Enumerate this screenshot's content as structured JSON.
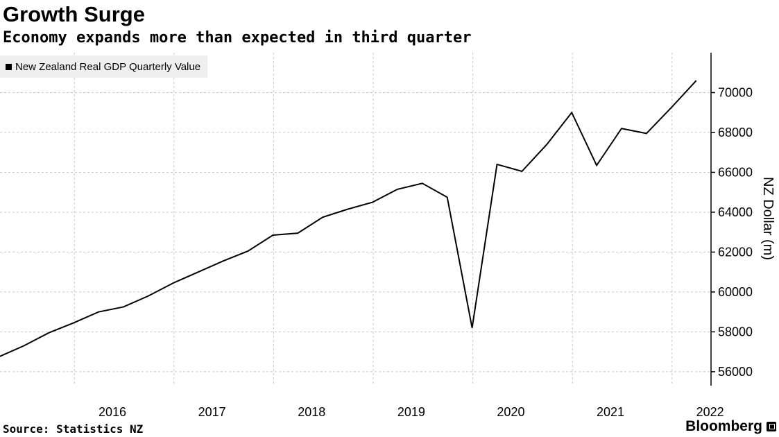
{
  "header": {
    "title": "Growth Surge",
    "subtitle": "Economy expands more than expected in third quarter"
  },
  "legend": {
    "label": "New Zealand Real GDP Quarterly Value"
  },
  "footer": {
    "source": "Source: Statistics NZ",
    "brand": "Bloomberg"
  },
  "colors": {
    "line": "#000000",
    "grid": "#c8c8c8",
    "legend_bg": "#efefef"
  },
  "chart_data": {
    "type": "line",
    "title": "Growth Surge",
    "subtitle": "Economy expands more than expected in third quarter",
    "xlabel": "",
    "ylabel": "NZ Dollar (m)",
    "ylim": [
      55300,
      72000
    ],
    "yticks": [
      56000,
      58000,
      60000,
      62000,
      64000,
      66000,
      68000,
      70000
    ],
    "xticks": [
      "2016",
      "2017",
      "2018",
      "2019",
      "2020",
      "2021",
      "2022"
    ],
    "legend": [
      "New Zealand Real GDP Quarterly Value"
    ],
    "grid": true,
    "series": [
      {
        "name": "New Zealand Real GDP Quarterly Value",
        "x": [
          "2015 Q2",
          "2015 Q3",
          "2015 Q4",
          "2016 Q1",
          "2016 Q2",
          "2016 Q3",
          "2016 Q4",
          "2017 Q1",
          "2017 Q2",
          "2017 Q3",
          "2017 Q4",
          "2018 Q1",
          "2018 Q2",
          "2018 Q3",
          "2018 Q4",
          "2019 Q1",
          "2019 Q2",
          "2019 Q3",
          "2019 Q4",
          "2020 Q1",
          "2020 Q2",
          "2020 Q3",
          "2020 Q4",
          "2021 Q1",
          "2021 Q2",
          "2021 Q3",
          "2021 Q4",
          "2022 Q1",
          "2022 Q2",
          "2022 Q3"
        ],
        "values": [
          56750,
          57300,
          57950,
          58450,
          59000,
          59250,
          59800,
          60450,
          61000,
          61550,
          62050,
          62850,
          62950,
          63750,
          64150,
          64500,
          65150,
          65450,
          64750,
          58200,
          66400,
          66050,
          67400,
          69000,
          66350,
          68200,
          67950,
          69250,
          70600,
          null
        ]
      }
    ]
  }
}
